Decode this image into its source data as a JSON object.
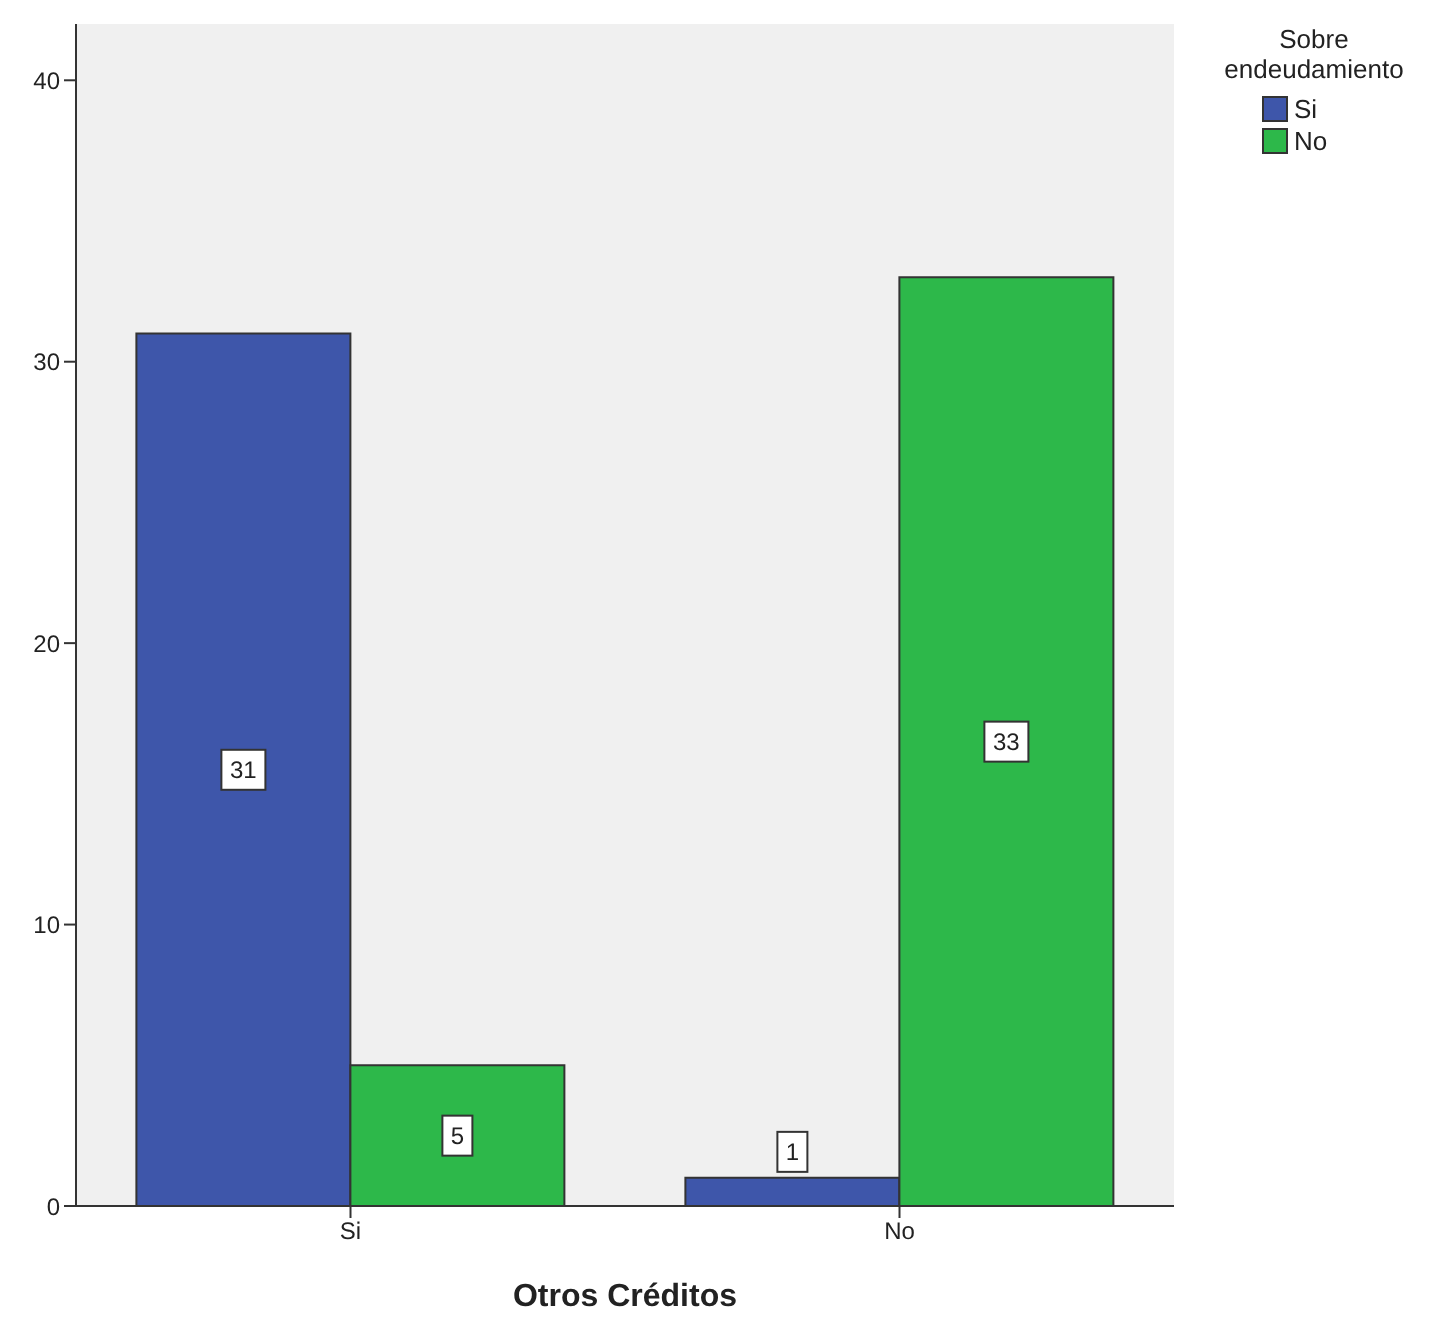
{
  "chart_data": {
    "type": "bar",
    "xlabel": "Otros Créditos",
    "legend_title": "Sobre endeudamiento",
    "categories": [
      "Si",
      "No"
    ],
    "series": [
      {
        "name": "Si",
        "color": "#3e56aa",
        "values": [
          31,
          1
        ]
      },
      {
        "name": "No",
        "color": "#2db84a",
        "values": [
          5,
          33
        ]
      }
    ],
    "ylim": [
      0,
      42
    ],
    "yticks": [
      0,
      10,
      20,
      30,
      40
    ],
    "data_labels": true,
    "grid": false,
    "legend": "top right"
  }
}
